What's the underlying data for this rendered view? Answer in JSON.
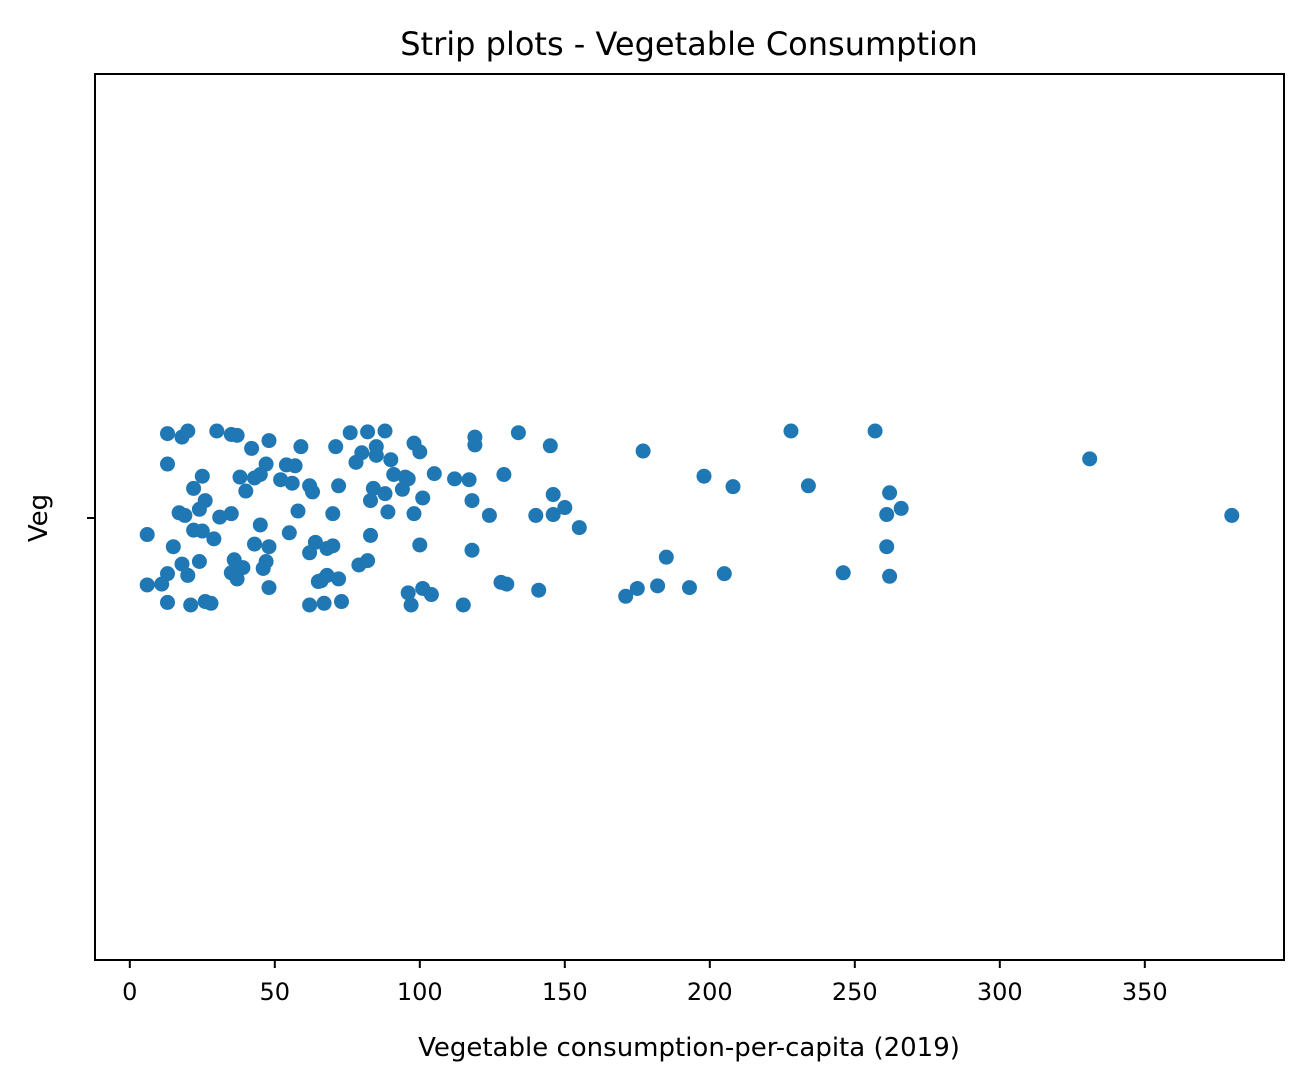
{
  "chart_data": {
    "type": "scatter",
    "subtype": "strip",
    "title": "Strip plots - Vegetable Consumption",
    "xlabel": "Vegetable consumption-per-capita (2019)",
    "ylabel": "",
    "category": "Veg",
    "xlim": [
      -12,
      398
    ],
    "x_ticks": [
      "0",
      "50",
      "100",
      "150",
      "200",
      "250",
      "300",
      "350"
    ],
    "x_tick_values": [
      0,
      50,
      100,
      150,
      200,
      250,
      300,
      350
    ],
    "color": "#1f77b4",
    "grid": false,
    "legend": "none",
    "series": [
      {
        "x": [
          13,
          18,
          20,
          30,
          35,
          37,
          48,
          59,
          76,
          82,
          88,
          98,
          119,
          134,
          145,
          228,
          257,
          42,
          71,
          80,
          85,
          90,
          100,
          119,
          177,
          331,
          13,
          47,
          54,
          57,
          78,
          85,
          38,
          45,
          25,
          43,
          52,
          62,
          72,
          91,
          95,
          96,
          105,
          112,
          117,
          129,
          198,
          208,
          234,
          22,
          26,
          40,
          56,
          63,
          84,
          88,
          94,
          101,
          118,
          146,
          262,
          17,
          24,
          35,
          58,
          70,
          83,
          89,
          98,
          124,
          140,
          146,
          150,
          261,
          266,
          380,
          19,
          31,
          45,
          155,
          6,
          25,
          29,
          55,
          64,
          83,
          22,
          15,
          43,
          48,
          62,
          68,
          70,
          100,
          118,
          185,
          261,
          18,
          24,
          36,
          47,
          39,
          79,
          82,
          13,
          20,
          35,
          46,
          66,
          72,
          68,
          128,
          205,
          246,
          262,
          6,
          11,
          37,
          48,
          65,
          96,
          101,
          104,
          130,
          141,
          175,
          182,
          193,
          13,
          26,
          28,
          21,
          62,
          67,
          73,
          97,
          115,
          171
        ],
        "y": [
          0.97,
          0.93,
          1.0,
          1.0,
          0.96,
          0.95,
          0.89,
          0.82,
          0.98,
          0.99,
          1.0,
          0.86,
          0.93,
          0.98,
          0.83,
          1.0,
          1.0,
          0.8,
          0.82,
          0.75,
          0.72,
          0.67,
          0.76,
          0.84,
          0.77,
          0.68,
          0.62,
          0.62,
          0.61,
          0.6,
          0.64,
          0.82,
          0.47,
          0.5,
          0.48,
          0.46,
          0.44,
          0.37,
          0.37,
          0.5,
          0.47,
          0.45,
          0.51,
          0.45,
          0.44,
          0.5,
          0.48,
          0.36,
          0.37,
          0.34,
          0.2,
          0.31,
          0.4,
          0.3,
          0.34,
          0.28,
          0.33,
          0.23,
          0.2,
          0.27,
          0.29,
          0.06,
          0.1,
          0.05,
          0.08,
          0.05,
          0.2,
          0.07,
          0.05,
          0.03,
          0.03,
          0.04,
          0.12,
          0.04,
          0.11,
          0.03,
          0.03,
          0.01,
          -0.08,
          -0.11,
          -0.19,
          -0.15,
          -0.24,
          -0.17,
          -0.28,
          -0.2,
          -0.14,
          -0.33,
          -0.3,
          -0.33,
          -0.4,
          -0.35,
          -0.32,
          -0.31,
          -0.37,
          -0.45,
          -0.33,
          -0.53,
          -0.5,
          -0.48,
          -0.5,
          -0.57,
          -0.54,
          -0.49,
          -0.64,
          -0.66,
          -0.63,
          -0.58,
          -0.72,
          -0.7,
          -0.66,
          -0.74,
          -0.64,
          -0.63,
          -0.67,
          -0.77,
          -0.76,
          -0.7,
          -0.8,
          -0.73,
          -0.86,
          -0.81,
          -0.88,
          -0.76,
          -0.83,
          -0.81,
          -0.78,
          -0.8,
          -0.97,
          -0.96,
          -0.98,
          -1.0,
          -1.0,
          -0.98,
          -0.96,
          -1.0,
          -1.0,
          -0.9
        ]
      }
    ]
  }
}
